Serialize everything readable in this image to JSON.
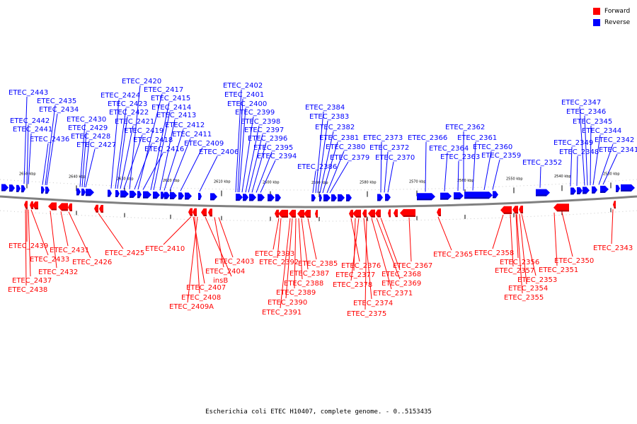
{
  "caption": "Escherichia coli ETEC H10407, complete genome. - 0..5153435",
  "legend": [
    {
      "key": "forward",
      "label": "Forward",
      "color": "#ff0000"
    },
    {
      "key": "reverse",
      "label": "Reverse",
      "color": "#0000ff"
    }
  ],
  "colors": {
    "forward": "#ff0000",
    "reverse": "#0000ff",
    "backbone": "#808080"
  },
  "scale_labels": [
    "2650 kbp",
    "2640 kbp",
    "2630 kbp",
    "2620 kbp",
    "2610 kbp",
    "2600 kbp",
    "2590 kbp",
    "2580 kbp",
    "2570 kbp",
    "2560 kbp",
    "2550 kbp",
    "2540 kbp",
    "2530 kbp"
  ],
  "reverse_genes": [
    "ETEC_2443",
    "ETEC_2442",
    "ETEC_2441",
    "ETEC_2435",
    "ETEC_2434",
    "ETEC_2436",
    "ETEC_2430",
    "ETEC_2429",
    "ETEC_2428",
    "ETEC_2427",
    "ETEC_2424",
    "ETEC_2423",
    "ETEC_2422",
    "ETEC_2421",
    "ETEC_2420",
    "ETEC_2419",
    "ETEC_2418",
    "ETEC_2417",
    "ETEC_2416",
    "ETEC_2415",
    "ETEC_2414",
    "ETEC_2413",
    "ETEC_2412",
    "ETEC_2411",
    "ETEC_2409",
    "ETEC_2406",
    "ETEC_2402",
    "ETEC_2401",
    "ETEC_2400",
    "ETEC_2399",
    "ETEC_2398",
    "ETEC_2397",
    "ETEC_2396",
    "ETEC_2395",
    "ETEC_2394",
    "ETEC_2386",
    "ETEC_2384",
    "ETEC_2383",
    "ETEC_2382",
    "ETEC_2381",
    "ETEC_2380",
    "ETEC_2379",
    "ETEC_2373",
    "ETEC_2372",
    "ETEC_2370",
    "ETEC_2366",
    "ETEC_2364",
    "ETEC_2363",
    "ETEC_2362",
    "ETEC_2361",
    "ETEC_2360",
    "ETEC_2359",
    "ETEC_2352",
    "ETEC_2349",
    "ETEC_2348",
    "ETEC_2347",
    "ETEC_2346",
    "ETEC_2345",
    "ETEC_2344",
    "ETEC_2342",
    "ETEC_2341"
  ],
  "forward_genes": [
    "ETEC_2439",
    "ETEC_2433",
    "ETEC_2437",
    "ETEC_2438",
    "ETEC_2432",
    "ETEC_2431",
    "ETEC_2426",
    "ETEC_2425",
    "ETEC_2410",
    "ETEC_2407",
    "ETEC_2408",
    "ETEC_2409A",
    "insB",
    "ETEC_2404",
    "ETEC_2403",
    "ETEC_2393",
    "ETEC_2392",
    "ETEC_2391",
    "ETEC_2390",
    "ETEC_2389",
    "ETEC_2388",
    "ETEC_2387",
    "ETEC_2385",
    "ETEC_2376",
    "ETEC_2377",
    "ETEC_2378",
    "ETEC_2374",
    "ETEC_2375",
    "ETEC_2371",
    "ETEC_2369",
    "ETEC_2368",
    "ETEC_2367",
    "ETEC_2365",
    "ETEC_2358",
    "ETEC_2357",
    "ETEC_2356",
    "ETEC_2355",
    "ETEC_2354",
    "ETEC_2353",
    "ETEC_2351",
    "ETEC_2350",
    "ETEC_2343"
  ]
}
